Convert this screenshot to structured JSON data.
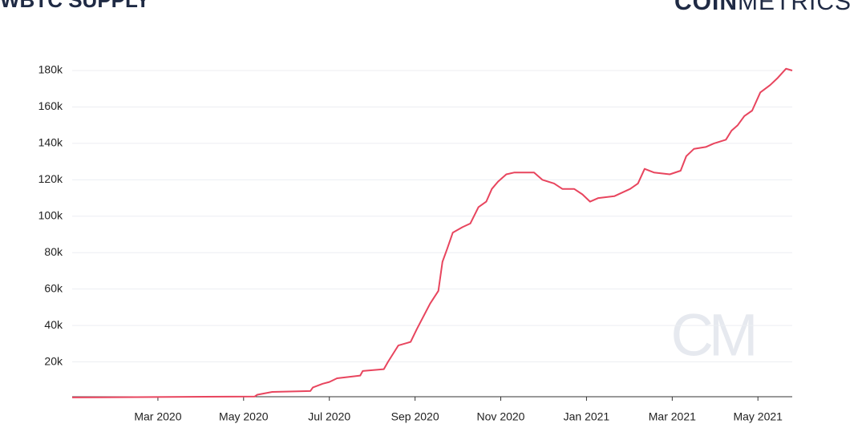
{
  "chart_data": {
    "type": "line",
    "title": "WBTC SUPPLY",
    "logo": {
      "bold": "COIN",
      "light": "METRICS"
    },
    "watermark": "CM",
    "x": [
      2020.0,
      2020.355,
      2020.36,
      2020.389,
      2020.463,
      2020.468,
      2020.487,
      2020.5,
      2020.515,
      2020.56,
      2020.565,
      2020.606,
      2020.614,
      2020.634,
      2020.658,
      2020.67,
      2020.696,
      2020.712,
      2020.72,
      2020.729,
      2020.74,
      2020.759,
      2020.774,
      2020.79,
      2020.805,
      2020.816,
      2020.828,
      2020.844,
      2020.86,
      2020.898,
      2020.914,
      2020.937,
      2020.953,
      2020.976,
      2020.992,
      2021.007,
      2021.023,
      2021.054,
      2021.085,
      2021.1,
      2021.113,
      2021.131,
      2021.162,
      2021.183,
      2021.194,
      2021.209,
      2021.232,
      2021.248,
      2021.271,
      2021.282,
      2021.294,
      2021.307,
      2021.322,
      2021.338,
      2021.357,
      2021.372,
      2021.388,
      2021.4
    ],
    "series": [
      {
        "name": "WBTC supply",
        "color": "#e8455e",
        "values": [
          500,
          1000,
          2000,
          3500,
          4000,
          6000,
          8000,
          9000,
          11000,
          12500,
          15000,
          16000,
          20000,
          29000,
          31000,
          38000,
          52000,
          59000,
          75000,
          82000,
          91000,
          94000,
          96000,
          105000,
          108000,
          115000,
          119000,
          123000,
          124000,
          124000,
          120000,
          118000,
          115000,
          115000,
          112000,
          108000,
          110000,
          111000,
          115000,
          118000,
          126000,
          124000,
          123000,
          125000,
          133000,
          137000,
          138000,
          140000,
          142000,
          147000,
          150000,
          155000,
          158000,
          168000,
          172000,
          176000,
          181000,
          180000
        ]
      }
    ],
    "xlim": [
      2020.0,
      2021.4
    ],
    "xticks": [
      {
        "value": 2020.1667,
        "label": "Mar 2020"
      },
      {
        "value": 2020.3333,
        "label": "May 2020"
      },
      {
        "value": 2020.5,
        "label": "Jul 2020"
      },
      {
        "value": 2020.6667,
        "label": "Sep 2020"
      },
      {
        "value": 2020.8333,
        "label": "Nov 2020"
      },
      {
        "value": 2021.0,
        "label": "Jan 2021"
      },
      {
        "value": 2021.1667,
        "label": "Mar 2021"
      },
      {
        "value": 2021.3333,
        "label": "May 2021"
      }
    ],
    "ylim": [
      0,
      180000
    ],
    "yticks": [
      {
        "value": 20000,
        "label": "20k"
      },
      {
        "value": 40000,
        "label": "40k"
      },
      {
        "value": 60000,
        "label": "60k"
      },
      {
        "value": 80000,
        "label": "80k"
      },
      {
        "value": 100000,
        "label": "100k"
      },
      {
        "value": 120000,
        "label": "120k"
      },
      {
        "value": 140000,
        "label": "140k"
      },
      {
        "value": 160000,
        "label": "160k"
      },
      {
        "value": 180000,
        "label": "180k"
      }
    ],
    "grid": true
  }
}
